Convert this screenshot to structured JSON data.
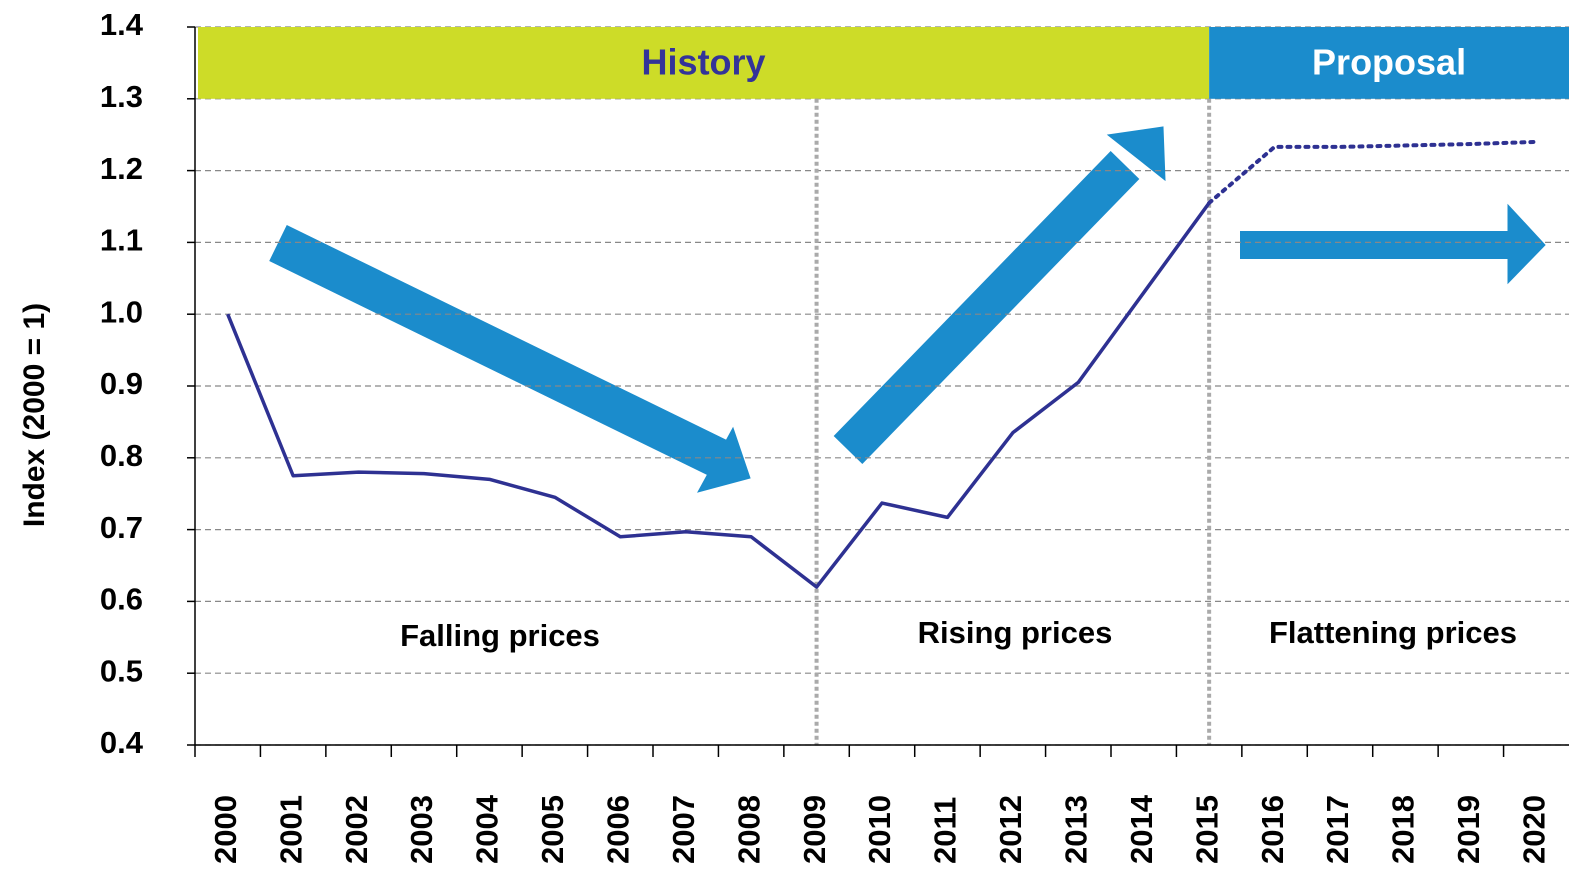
{
  "chart_data": {
    "type": "line",
    "ylabel": "Index (2000 = 1)",
    "categories": [
      "2000",
      "2001",
      "2002",
      "2003",
      "2004",
      "2005",
      "2006",
      "2007",
      "2008",
      "2009",
      "2010",
      "2011",
      "2012",
      "2013",
      "2014",
      "2015",
      "2016",
      "2017",
      "2018",
      "2019",
      "2020"
    ],
    "series": [
      {
        "color": "#2e3192",
        "dash": "solid",
        "values": [
          1.0,
          0.775,
          0.78,
          0.778,
          0.77,
          0.745,
          0.69,
          0.697,
          0.69,
          0.62,
          0.737,
          0.717,
          0.835,
          0.905,
          1.03,
          1.155,
          null,
          null,
          null,
          null,
          null
        ]
      },
      {
        "color": "#2e3192",
        "dash": "dotted",
        "values": [
          null,
          null,
          null,
          null,
          null,
          null,
          null,
          null,
          null,
          null,
          null,
          null,
          null,
          null,
          null,
          1.155,
          1.233,
          1.233,
          1.235,
          1.237,
          1.24
        ]
      }
    ],
    "ylim": [
      0.4,
      1.4
    ],
    "yticks": [
      0.4,
      0.5,
      0.6,
      0.7,
      0.8,
      0.9,
      {
        "value": 1,
        "label": "1.0"
      },
      1.1,
      1.2,
      1.3,
      1.4
    ],
    "grid": true,
    "dividers": [
      "2009",
      "2015"
    ],
    "banners": [
      {
        "text": "History",
        "color": "#cddc28",
        "text_color": "#333399"
      },
      {
        "text": "Proposal",
        "color": "#1b8ccc",
        "text_color": "#ffffff"
      }
    ],
    "annotations": [
      "Falling prices",
      "Rising prices",
      "Flattening prices"
    ]
  }
}
